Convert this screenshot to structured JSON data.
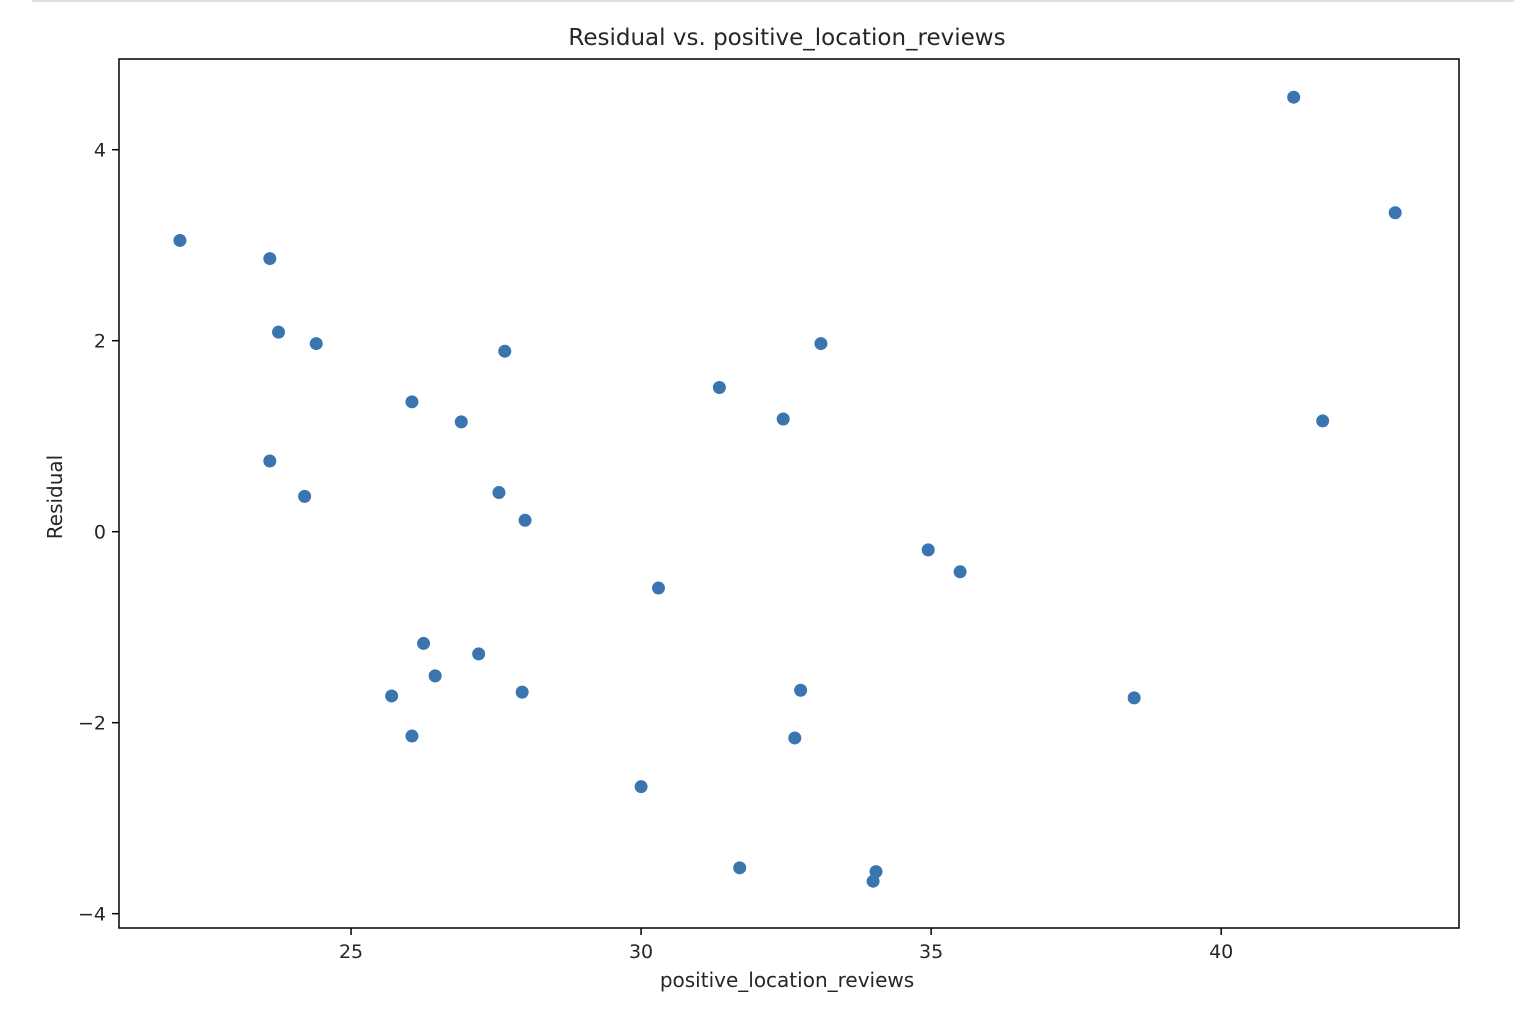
{
  "chart_data": {
    "type": "scatter",
    "title": "Residual vs. positive_location_reviews",
    "xlabel": "positive_location_reviews",
    "ylabel": "Residual",
    "xlim": [
      21,
      44.1
    ],
    "ylim": [
      -4.15,
      4.95
    ],
    "xticks": [
      25,
      30,
      35,
      40
    ],
    "xtick_labels": [
      "25",
      "30",
      "35",
      "40"
    ],
    "yticks": [
      -4,
      -2,
      0,
      2,
      4
    ],
    "ytick_labels": [
      "−4",
      "−2",
      "0",
      "2",
      "4"
    ],
    "grid": false,
    "legend": "none",
    "marker_color": "#3a75b0",
    "series": [
      {
        "points": [
          {
            "x": 22.05,
            "y": 3.05
          },
          {
            "x": 23.6,
            "y": 2.86
          },
          {
            "x": 23.75,
            "y": 2.09
          },
          {
            "x": 24.4,
            "y": 1.97
          },
          {
            "x": 23.6,
            "y": 0.74
          },
          {
            "x": 24.2,
            "y": 0.37
          },
          {
            "x": 26.05,
            "y": 1.36
          },
          {
            "x": 26.9,
            "y": 1.15
          },
          {
            "x": 27.65,
            "y": 1.89
          },
          {
            "x": 27.55,
            "y": 0.41
          },
          {
            "x": 28.0,
            "y": 0.12
          },
          {
            "x": 26.25,
            "y": -1.17
          },
          {
            "x": 27.2,
            "y": -1.28
          },
          {
            "x": 26.45,
            "y": -1.51
          },
          {
            "x": 25.7,
            "y": -1.72
          },
          {
            "x": 27.95,
            "y": -1.68
          },
          {
            "x": 26.05,
            "y": -2.14
          },
          {
            "x": 30.0,
            "y": -2.67
          },
          {
            "x": 30.3,
            "y": -0.59
          },
          {
            "x": 31.35,
            "y": 1.51
          },
          {
            "x": 32.45,
            "y": 1.18
          },
          {
            "x": 33.1,
            "y": 1.97
          },
          {
            "x": 32.75,
            "y": -1.66
          },
          {
            "x": 32.65,
            "y": -2.16
          },
          {
            "x": 31.7,
            "y": -3.52
          },
          {
            "x": 34.05,
            "y": -3.56
          },
          {
            "x": 34.0,
            "y": -3.66
          },
          {
            "x": 34.95,
            "y": -0.19
          },
          {
            "x": 35.5,
            "y": -0.42
          },
          {
            "x": 38.5,
            "y": -1.74
          },
          {
            "x": 41.25,
            "y": 4.55
          },
          {
            "x": 43.0,
            "y": 3.34
          },
          {
            "x": 41.75,
            "y": 1.16
          }
        ]
      }
    ]
  }
}
